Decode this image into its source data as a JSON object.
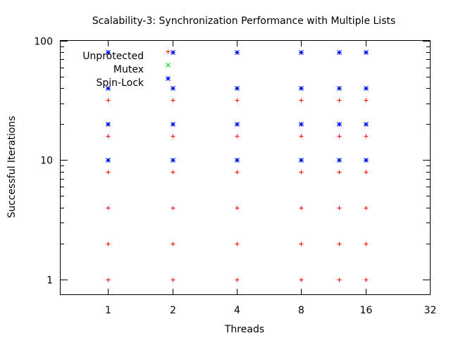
{
  "chart_data": {
    "type": "scatter",
    "title": "Scalability-3: Synchronization Performance with Multiple Lists",
    "xlabel": "Threads",
    "ylabel": "Successful Iterations",
    "xscale": "log2",
    "yscale": "log10",
    "xlim": [
      0.6,
      32
    ],
    "ylim": [
      0.75,
      100
    ],
    "xticks": [
      1,
      2,
      4,
      8,
      16,
      32
    ],
    "xtick_labels": [
      "1",
      "2",
      "4",
      "8",
      "16",
      "32"
    ],
    "yticks": [
      1,
      10,
      100
    ],
    "ytick_labels": [
      "1",
      "10",
      "100"
    ],
    "grid": false,
    "legend_position": "top-left",
    "series": [
      {
        "name": "Unprotected",
        "marker": "+",
        "color": "#ff0000",
        "points": [
          [
            1,
            1
          ],
          [
            1,
            2
          ],
          [
            1,
            4
          ],
          [
            1,
            8
          ],
          [
            1,
            16
          ],
          [
            1,
            32
          ],
          [
            2,
            1
          ],
          [
            2,
            2
          ],
          [
            2,
            4
          ],
          [
            2,
            8
          ],
          [
            2,
            16
          ],
          [
            2,
            32
          ],
          [
            4,
            1
          ],
          [
            4,
            2
          ],
          [
            4,
            4
          ],
          [
            4,
            8
          ],
          [
            4,
            16
          ],
          [
            4,
            32
          ],
          [
            8,
            1
          ],
          [
            8,
            2
          ],
          [
            8,
            4
          ],
          [
            8,
            8
          ],
          [
            8,
            16
          ],
          [
            8,
            32
          ],
          [
            12,
            1
          ],
          [
            12,
            2
          ],
          [
            12,
            4
          ],
          [
            12,
            8
          ],
          [
            12,
            16
          ],
          [
            12,
            32
          ],
          [
            16,
            1
          ],
          [
            16,
            2
          ],
          [
            16,
            4
          ],
          [
            16,
            8
          ],
          [
            16,
            16
          ],
          [
            16,
            32
          ]
        ]
      },
      {
        "name": "Mutex",
        "marker": "x",
        "color": "#00cc00",
        "points": [
          [
            1,
            10
          ],
          [
            1,
            20
          ],
          [
            1,
            40
          ],
          [
            1,
            80
          ],
          [
            2,
            10
          ],
          [
            2,
            20
          ],
          [
            2,
            40
          ],
          [
            2,
            80
          ],
          [
            4,
            10
          ],
          [
            4,
            20
          ],
          [
            4,
            40
          ],
          [
            4,
            80
          ],
          [
            8,
            10
          ],
          [
            8,
            20
          ],
          [
            8,
            40
          ],
          [
            8,
            80
          ],
          [
            12,
            10
          ],
          [
            12,
            20
          ],
          [
            12,
            40
          ],
          [
            12,
            80
          ],
          [
            16,
            10
          ],
          [
            16,
            20
          ],
          [
            16,
            40
          ],
          [
            16,
            80
          ]
        ]
      },
      {
        "name": "Spin-Lock",
        "marker": "*",
        "color": "#0000ff",
        "points": [
          [
            1,
            10
          ],
          [
            1,
            20
          ],
          [
            1,
            40
          ],
          [
            1,
            80
          ],
          [
            2,
            10
          ],
          [
            2,
            20
          ],
          [
            2,
            40
          ],
          [
            2,
            80
          ],
          [
            4,
            10
          ],
          [
            4,
            20
          ],
          [
            4,
            40
          ],
          [
            4,
            80
          ],
          [
            8,
            10
          ],
          [
            8,
            20
          ],
          [
            8,
            40
          ],
          [
            8,
            80
          ],
          [
            12,
            10
          ],
          [
            12,
            20
          ],
          [
            12,
            40
          ],
          [
            12,
            80
          ],
          [
            16,
            10
          ],
          [
            16,
            20
          ],
          [
            16,
            40
          ],
          [
            16,
            80
          ]
        ]
      }
    ]
  }
}
